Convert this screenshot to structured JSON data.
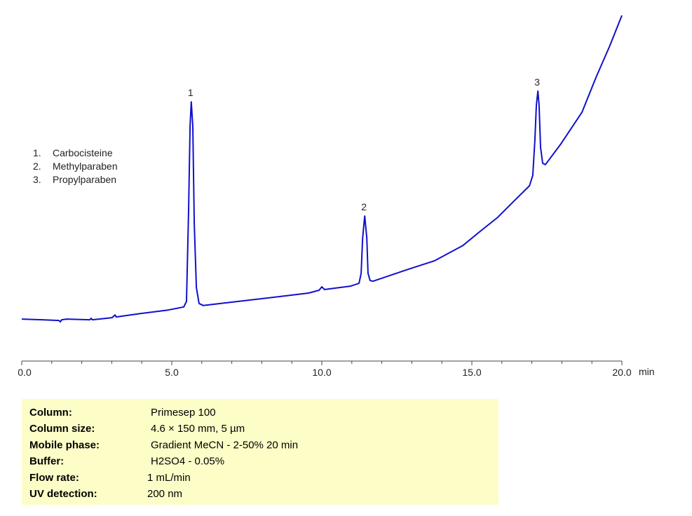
{
  "chart_data": {
    "type": "line",
    "x_label": "min",
    "xlim": [
      0,
      20
    ],
    "xticks": [
      {
        "value": 0,
        "label": "0.0"
      },
      {
        "value": 5,
        "label": "5.0"
      },
      {
        "value": 10,
        "label": "10.0"
      },
      {
        "value": 15,
        "label": "15.0"
      },
      {
        "value": 20,
        "label": "20.0"
      }
    ],
    "xminor_ticks": [
      1,
      2,
      3,
      4,
      6,
      7,
      8,
      9,
      11,
      12,
      13,
      14,
      16,
      17,
      18,
      19
    ],
    "ylim": [
      0,
      100
    ],
    "x": [
      0,
      0.68,
      1.24,
      1.29,
      1.33,
      1.5,
      2.27,
      2.31,
      2.36,
      3.01,
      3.11,
      3.15,
      3.95,
      4.88,
      5.4,
      5.49,
      5.56,
      5.61,
      5.65,
      5.7,
      5.75,
      5.82,
      5.91,
      6.05,
      7.22,
      8.62,
      9.56,
      9.91,
      10.0,
      10.09,
      10.26,
      10.96,
      11.24,
      11.31,
      11.36,
      11.43,
      11.5,
      11.54,
      11.61,
      11.71,
      12.83,
      13.76,
      14.7,
      15.28,
      15.86,
      16.45,
      16.92,
      17.03,
      17.1,
      17.15,
      17.2,
      17.24,
      17.29,
      17.36,
      17.45,
      17.97,
      18.67,
      19.14,
      19.6,
      20.0
    ],
    "series": [
      {
        "color": "#1010cc",
        "values": [
          12.1,
          11.9,
          11.7,
          11.3,
          11.9,
          12.1,
          11.9,
          12.3,
          11.9,
          12.5,
          13.3,
          12.7,
          13.7,
          14.7,
          15.6,
          17.2,
          43.4,
          67.7,
          74.7,
          67.7,
          39.4,
          21.2,
          16.6,
          16.0,
          17.2,
          18.6,
          19.6,
          20.4,
          21.4,
          20.6,
          20.8,
          21.6,
          22.4,
          25.3,
          35.4,
          41.8,
          35.4,
          25.3,
          23.2,
          23.0,
          26.3,
          28.9,
          33.3,
          37.4,
          41.4,
          46.5,
          50.5,
          53.5,
          63.6,
          73.7,
          77.8,
          73.7,
          61.6,
          57.0,
          56.6,
          62.6,
          71.7,
          81.8,
          90.9,
          99.6
        ]
      }
    ],
    "annotations": [
      {
        "text": "1",
        "x": 5.65,
        "y": 74.7
      },
      {
        "text": "2",
        "x": 11.43,
        "y": 41.8
      },
      {
        "text": "3",
        "x": 17.2,
        "y": 77.8
      }
    ],
    "compounds": [
      {
        "number": "1.",
        "name": "Carbocisteine"
      },
      {
        "number": "2.",
        "name": "Methylparaben"
      },
      {
        "number": "3.",
        "name": "Propylparaben"
      }
    ]
  },
  "conditions": {
    "rows": [
      [
        "Column:",
        "Primesep 100"
      ],
      [
        "Column size:",
        "4.6 × 150 mm, 5 µm"
      ],
      [
        "Mobile phase:",
        "Gradient MeCN - 2-50% 20 min"
      ],
      [
        "Buffer:",
        "H2SO4 - 0.05%"
      ],
      [
        "Flow rate:",
        "1 mL/min"
      ],
      [
        "UV detection:",
        "200 nm"
      ]
    ]
  }
}
